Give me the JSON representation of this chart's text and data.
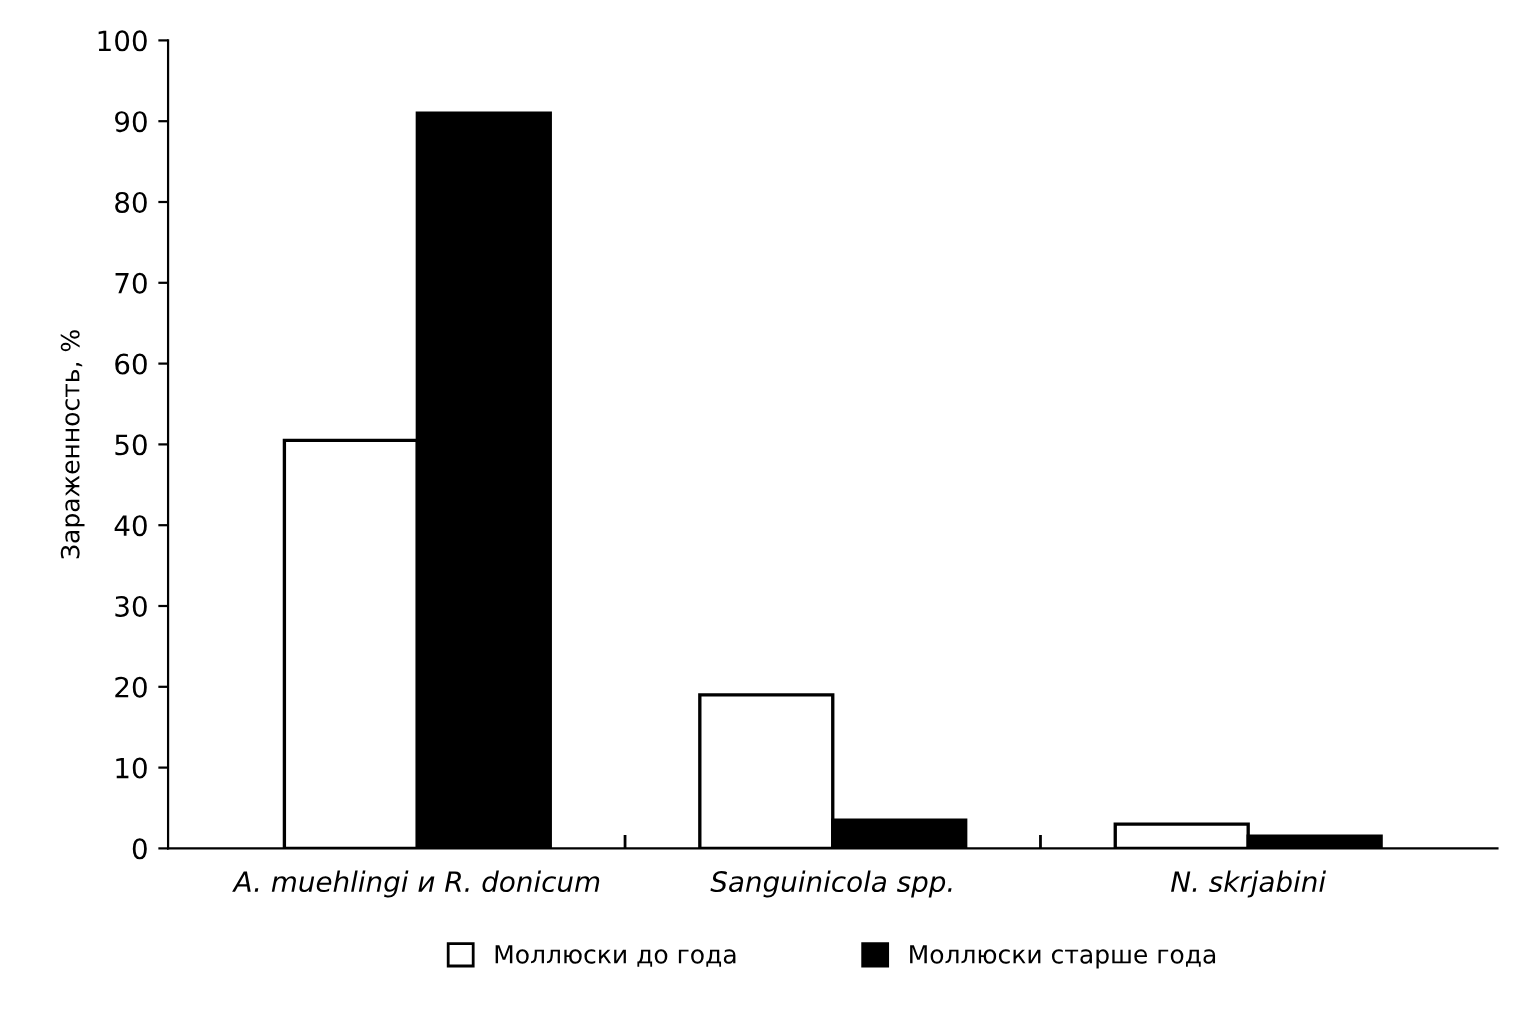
{
  "chart_data": {
    "type": "bar",
    "ylabel": "Зараженность, %",
    "categories": [
      "A. muehlingi и R. donicum",
      "Sanguinicola spp.",
      "N. skrjabini"
    ],
    "series": [
      {
        "name": "Моллюски до года",
        "color": "#ffffff",
        "values": [
          50.5,
          19,
          3
        ]
      },
      {
        "name": "Моллюски старше года",
        "color": "#000000",
        "values": [
          91,
          3.5,
          1.5
        ]
      }
    ],
    "ylim": [
      0,
      100
    ],
    "yticks": [
      0,
      10,
      20,
      30,
      40,
      50,
      60,
      70,
      80,
      90,
      100
    ],
    "grid": false,
    "legend": "bottom"
  }
}
